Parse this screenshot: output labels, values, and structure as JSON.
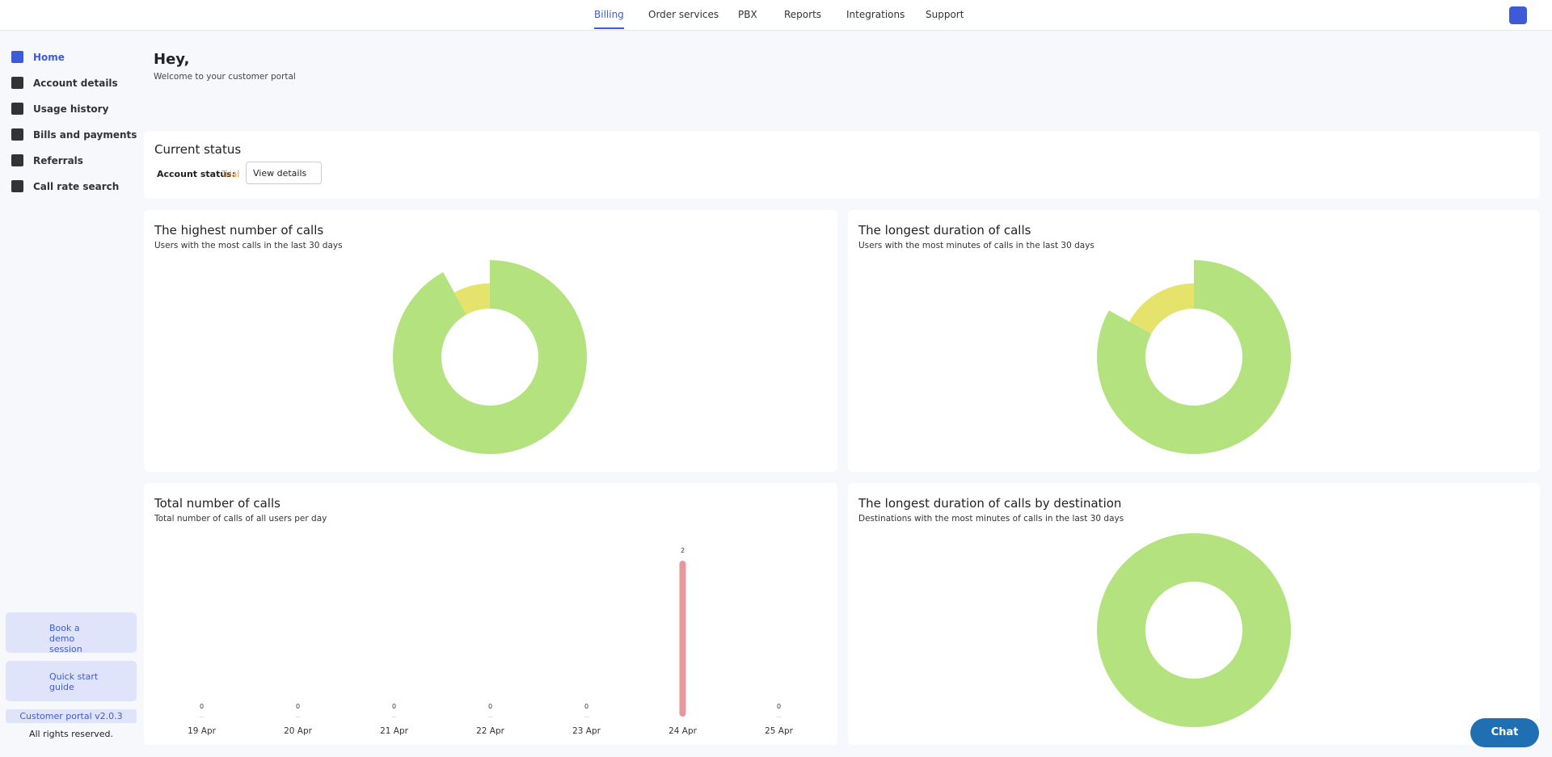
{
  "nav": {
    "items": [
      "Billing",
      "Order services",
      "PBX",
      "Reports",
      "Integrations",
      "Support"
    ]
  },
  "sidebar": {
    "items": [
      "Home",
      "Account details",
      "Usage history",
      "Bills and payments",
      "Referrals",
      "Call rate search"
    ],
    "promos": [
      "Book a demo session",
      "Quick start guide"
    ],
    "version": "Customer portal v2.0.3",
    "footer": "All rights reserved."
  },
  "greeting": {
    "title": "Hey,",
    "subtitle": "Welcome to your customer portal"
  },
  "status": {
    "title": "Current status",
    "label": "Account status:",
    "value": "Trial",
    "button": "View details"
  },
  "chat": "Chat",
  "chart_data": [
    {
      "type": "donut",
      "title": "The highest number of calls",
      "subtitle": "Users with the most calls in the last 30 days",
      "values": [
        92,
        8
      ],
      "colors": [
        "#b3e27f",
        "#e6e36d"
      ]
    },
    {
      "type": "donut",
      "title": "The longest duration of calls",
      "subtitle": "Users with the most minutes of calls in the last 30 days",
      "values": [
        83,
        17
      ],
      "colors": [
        "#b3e27f",
        "#e6e36d"
      ]
    },
    {
      "type": "bar",
      "title": "Total number of calls",
      "subtitle": "Total number of calls of all users per day",
      "categories": [
        "19 Apr",
        "20 Apr",
        "21 Apr",
        "22 Apr",
        "23 Apr",
        "24 Apr",
        "25 Apr"
      ],
      "values": [
        0,
        0,
        0,
        0,
        0,
        2,
        0
      ],
      "color": "#e8979a"
    },
    {
      "type": "donut",
      "title": "The longest duration of calls by destination",
      "subtitle": "Destinations with the most minutes of calls in the last 30 days",
      "values": [
        100
      ],
      "colors": [
        "#b3e27f"
      ]
    }
  ]
}
